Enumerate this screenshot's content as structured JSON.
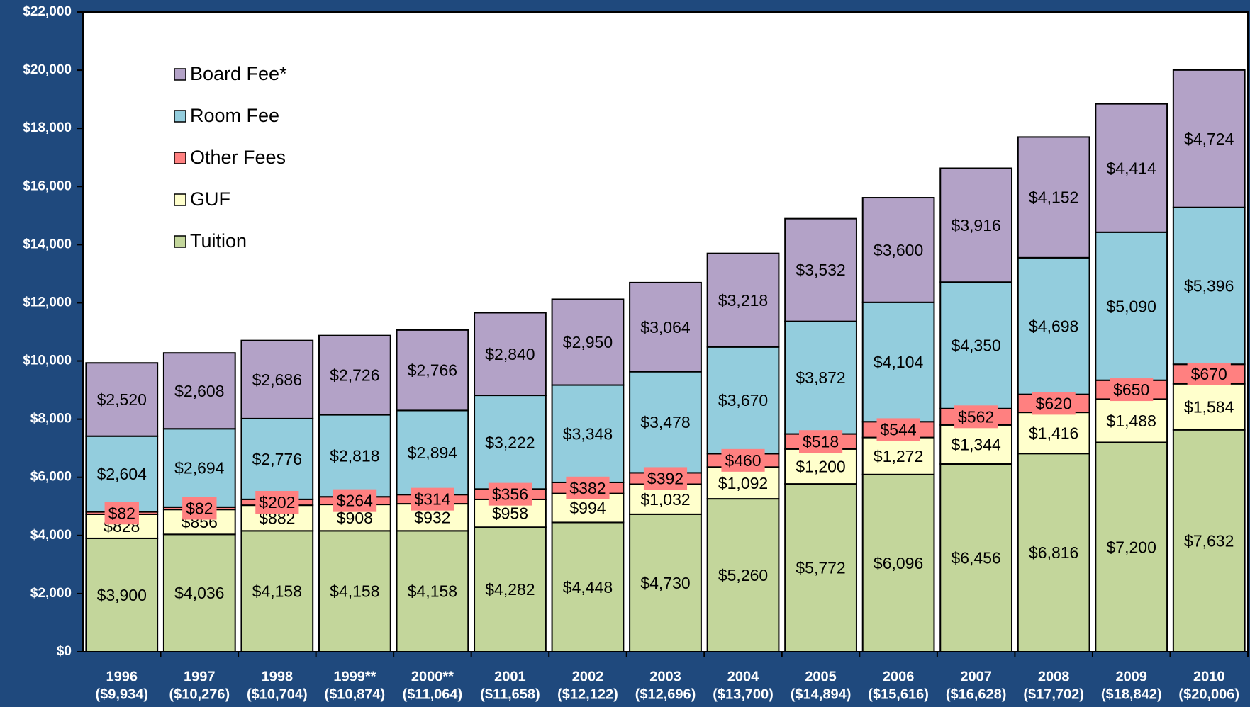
{
  "chart_data": {
    "type": "stacked_bar",
    "categories": [
      "1996",
      "1997",
      "1998",
      "1999**",
      "2000**",
      "2001",
      "2002",
      "2003",
      "2004",
      "2005",
      "2006",
      "2007",
      "2008",
      "2009",
      "2010"
    ],
    "category_totals": [
      "($9,934)",
      "($10,276)",
      "($10,704)",
      "($10,874)",
      "($11,064)",
      "($11,658)",
      "($12,122)",
      "($12,696)",
      "($13,700)",
      "($14,894)",
      "($15,616)",
      "($16,628)",
      "($17,702)",
      "($18,842)",
      "($20,006)"
    ],
    "series": [
      {
        "name": "Tuition",
        "color": "#c3d69b",
        "values": [
          3900,
          4036,
          4158,
          4158,
          4158,
          4282,
          4448,
          4730,
          5260,
          5772,
          6096,
          6456,
          6816,
          7200,
          7632
        ],
        "value_labels": [
          "$3,900",
          "$4,036",
          "$4,158",
          "$4,158",
          "$4,158",
          "$4,282",
          "$4,448",
          "$4,730",
          "$5,260",
          "$5,772",
          "$6,096",
          "$6,456",
          "$6,816",
          "$7,200",
          "$7,632"
        ]
      },
      {
        "name": "GUF",
        "color": "#ffffcc",
        "values": [
          828,
          856,
          882,
          908,
          932,
          958,
          994,
          1032,
          1092,
          1200,
          1272,
          1344,
          1416,
          1488,
          1584
        ],
        "value_labels": [
          "$828",
          "$856",
          "$882",
          "$908",
          "$932",
          "$958",
          "$994",
          "$1,032",
          "$1,092",
          "$1,200",
          "$1,272",
          "$1,344",
          "$1,416",
          "$1,488",
          "$1,584"
        ]
      },
      {
        "name": "Other Fees",
        "color": "#ff8080",
        "values": [
          82,
          82,
          202,
          264,
          314,
          356,
          382,
          392,
          460,
          518,
          544,
          562,
          620,
          650,
          670
        ],
        "value_labels": [
          "$82",
          "$82",
          "$202",
          "$264",
          "$314",
          "$356",
          "$382",
          "$392",
          "$460",
          "$518",
          "$544",
          "$562",
          "$620",
          "$650",
          "$670"
        ]
      },
      {
        "name": "Room Fee",
        "color": "#93cddd",
        "values": [
          2604,
          2694,
          2776,
          2818,
          2894,
          3222,
          3348,
          3478,
          3670,
          3872,
          4104,
          4350,
          4698,
          5090,
          5396
        ],
        "value_labels": [
          "$2,604",
          "$2,694",
          "$2,776",
          "$2,818",
          "$2,894",
          "$3,222",
          "$3,348",
          "$3,478",
          "$3,670",
          "$3,872",
          "$4,104",
          "$4,350",
          "$4,698",
          "$5,090",
          "$5,396"
        ]
      },
      {
        "name": "Board Fee*",
        "color": "#b3a2c7",
        "values": [
          2520,
          2608,
          2686,
          2726,
          2766,
          2840,
          2950,
          3064,
          3218,
          3532,
          3600,
          3916,
          4152,
          4414,
          4724
        ],
        "value_labels": [
          "$2,520",
          "$2,608",
          "$2,686",
          "$2,726",
          "$2,766",
          "$2,840",
          "$2,950",
          "$3,064",
          "$3,218",
          "$3,532",
          "$3,600",
          "$3,916",
          "$4,152",
          "$4,414",
          "$4,724"
        ]
      }
    ],
    "ylim": [
      0,
      22000
    ],
    "yticks": [
      {
        "value": 0,
        "label": "$0"
      },
      {
        "value": 2000,
        "label": "$2,000"
      },
      {
        "value": 4000,
        "label": "$4,000"
      },
      {
        "value": 6000,
        "label": "$6,000"
      },
      {
        "value": 8000,
        "label": "$8,000"
      },
      {
        "value": 10000,
        "label": "$10,000"
      },
      {
        "value": 12000,
        "label": "$12,000"
      },
      {
        "value": 14000,
        "label": "$14,000"
      },
      {
        "value": 16000,
        "label": "$16,000"
      },
      {
        "value": 18000,
        "label": "$18,000"
      },
      {
        "value": 20000,
        "label": "$20,000"
      },
      {
        "value": 22000,
        "label": "$22,000"
      }
    ],
    "legend": "upper left"
  }
}
